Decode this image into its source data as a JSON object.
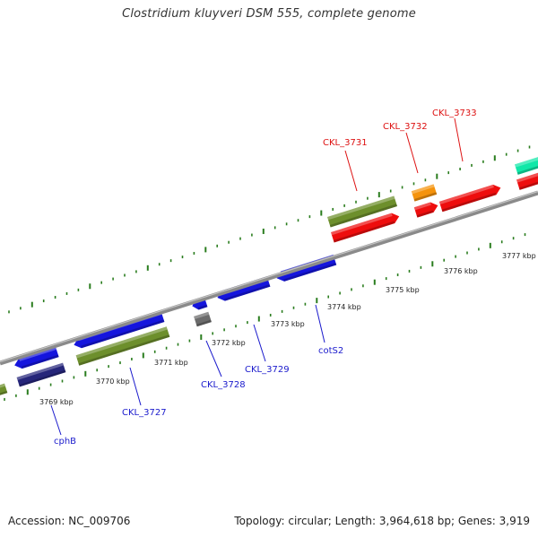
{
  "title": "Clostridium kluyveri DSM 555, complete genome",
  "footer": {
    "accession": "Accession: NC_009706",
    "summary": "Topology: circular; Length: 3,964,618 bp; Genes: 3,919"
  },
  "colors": {
    "axis": "#8a8a8a",
    "tick": "#2a7d1e",
    "minus_label": "#1a1acc",
    "plus_label": "#dd1111",
    "blue_gene": "#1515dd",
    "red_gene": "#ee0d0d",
    "olive_gene": "#6d8f2c",
    "orange_gene": "#f5930c",
    "gray_gene": "#6b6b6b",
    "navy_gene": "#26267a",
    "cyan_gene": "#10e8a8"
  },
  "scale": {
    "unit": "kbp",
    "labels": [
      "3769 kbp",
      "3770 kbp",
      "3771 kbp",
      "3772 kbp",
      "3773 kbp",
      "3774 kbp",
      "3775 kbp",
      "3776 kbp",
      "3777 kbp"
    ]
  },
  "gene_labels": [
    {
      "name": "cphB",
      "strand": "minus"
    },
    {
      "name": "CKL_3727",
      "strand": "minus"
    },
    {
      "name": "CKL_3728",
      "strand": "minus"
    },
    {
      "name": "CKL_3729",
      "strand": "minus"
    },
    {
      "name": "cotS2",
      "strand": "minus"
    },
    {
      "name": "CKL_3731",
      "strand": "plus"
    },
    {
      "name": "CKL_3732",
      "strand": "plus"
    },
    {
      "name": "CKL_3733",
      "strand": "plus"
    }
  ]
}
